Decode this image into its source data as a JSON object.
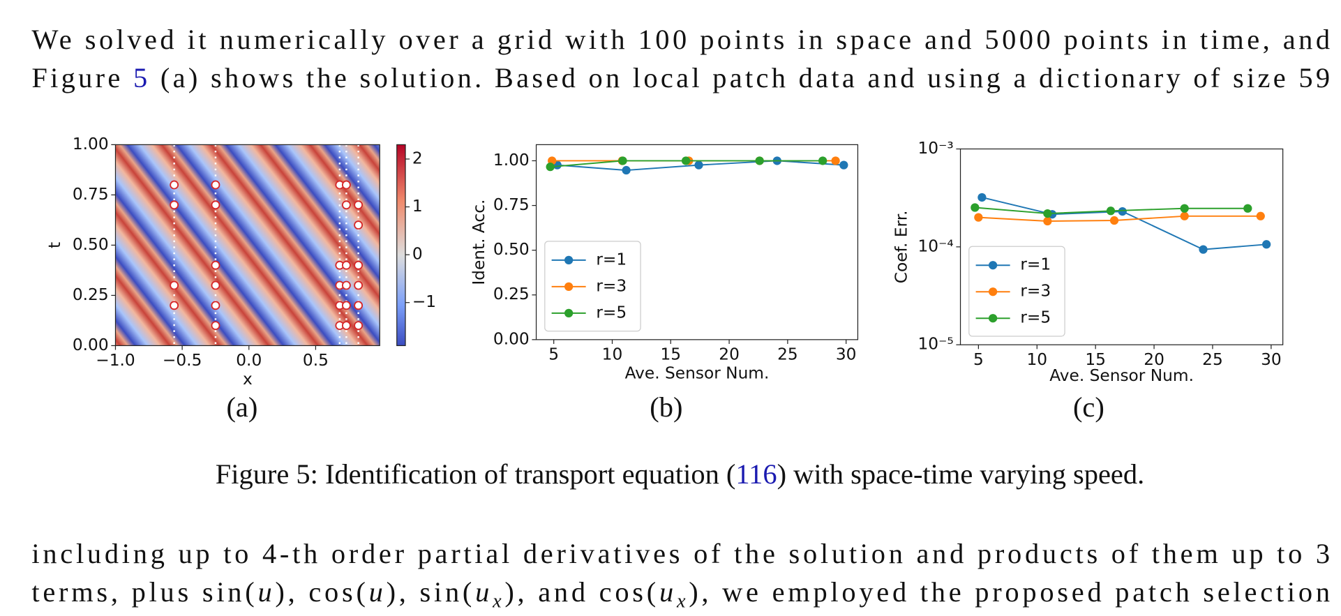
{
  "paragraph_1": {
    "line_1": "We solved it numerically over a grid with 100 points in space and 5000 points in time, and",
    "line_2_start": "Figure",
    "figure_ref": "5",
    "line_2_end": "(a) shows the solution. Based on local patch data and using a dictionary of size 59"
  },
  "caption": {
    "start": "Figure 5: Identification of transport equation (",
    "equation_ref": "116",
    "end": ") with space-time varying speed."
  },
  "paragraph_2": {
    "line_1": "including up to 4-th order partial derivatives of the solution and products of them up to 3",
    "line_2": [
      {
        "text": "terms, plus sin("
      },
      {
        "text": "u",
        "style": "italic"
      },
      {
        "text": "), cos("
      },
      {
        "text": "u",
        "style": "italic"
      },
      {
        "text": "), sin("
      },
      {
        "text": "u",
        "style": "italic"
      },
      {
        "text": "x",
        "style": "italic-sub"
      },
      {
        "text": "), and cos("
      },
      {
        "text": "u",
        "style": "italic"
      },
      {
        "text": "x",
        "style": "italic-sub"
      },
      {
        "text": "), we employed the proposed patch selection"
      }
    ]
  },
  "chart_data": [
    {
      "type": "heatmap",
      "panel_label": "(a)",
      "xlabel": "x",
      "ylabel": "t",
      "xlim": [
        -1,
        0.98
      ],
      "ylim": [
        0,
        1
      ],
      "xticks": [
        {
          "value": -1,
          "label": "−1.0"
        },
        {
          "value": -0.5,
          "label": "−0.5"
        },
        {
          "value": 0,
          "label": "0.0"
        },
        {
          "value": 0.5,
          "label": "0.5"
        }
      ],
      "yticks": [
        {
          "value": 0,
          "label": "0.00"
        },
        {
          "value": 0.25,
          "label": "0.25"
        },
        {
          "value": 0.5,
          "label": "0.50"
        },
        {
          "value": 0.75,
          "label": "0.75"
        },
        {
          "value": 1,
          "label": "1.00"
        }
      ],
      "colorbar": {
        "lim": [
          -1.9,
          2.3
        ],
        "ticks": [
          {
            "value": -1,
            "label": "−1"
          },
          0,
          1,
          2
        ]
      },
      "points": {
        "color": "#d62728",
        "x": [
          -0.56,
          -0.56,
          -0.56,
          -0.56,
          -0.25,
          -0.25,
          -0.25,
          -0.25,
          -0.25,
          -0.25,
          0.68,
          0.68,
          0.68,
          0.68,
          0.68,
          0.73,
          0.73,
          0.73,
          0.73,
          0.73,
          0.73,
          0.82,
          0.82,
          0.82,
          0.82,
          0.82,
          0.82
        ],
        "y": [
          0.8,
          0.7,
          0.3,
          0.2,
          0.8,
          0.7,
          0.4,
          0.3,
          0.2,
          0.1,
          0.8,
          0.4,
          0.3,
          0.2,
          0.1,
          0.8,
          0.7,
          0.4,
          0.3,
          0.2,
          0.1,
          0.7,
          0.6,
          0.4,
          0.3,
          0.2,
          0.1
        ]
      }
    },
    {
      "type": "line",
      "panel_label": "(b)",
      "xlabel": "Ave. Sensor Num.",
      "ylabel": "Ident. Acc.",
      "xlim": [
        3.5,
        31
      ],
      "ylim": [
        0,
        1.09
      ],
      "xticks": [
        5,
        10,
        15,
        20,
        25,
        30
      ],
      "yticks": [
        {
          "value": 0,
          "label": "0.00"
        },
        {
          "value": 0.25,
          "label": "0.25"
        },
        {
          "value": 0.5,
          "label": "0.50"
        },
        {
          "value": 0.75,
          "label": "0.75"
        },
        {
          "value": 1,
          "label": "1.00"
        }
      ],
      "legend": "lower left",
      "series": [
        {
          "name": "r=1",
          "color": "#1f77b4",
          "x": [
            5.3,
            11.2,
            17.4,
            24.1,
            29.8
          ],
          "values": [
            0.976,
            0.947,
            0.976,
            1.0,
            0.976
          ]
        },
        {
          "name": "r=3",
          "color": "#ff7f0e",
          "x": [
            4.85,
            10.85,
            16.55,
            22.6,
            29.1
          ],
          "values": [
            1.0,
            1.0,
            1.0,
            1.0,
            1.0
          ]
        },
        {
          "name": "r=5",
          "color": "#2ca02c",
          "x": [
            4.7,
            10.9,
            16.3,
            22.6,
            28.0
          ],
          "values": [
            0.966,
            1.0,
            1.0,
            1.0,
            1.0
          ]
        }
      ]
    },
    {
      "type": "line",
      "panel_label": "(c)",
      "xlabel": "Ave. Sensor Num.",
      "ylabel": "Coef. Err.",
      "log_y": true,
      "xlim": [
        3.46,
        31
      ],
      "ylim": [
        1e-05,
        0.001
      ],
      "xticks": [
        5,
        10,
        15,
        20,
        25,
        30
      ],
      "yticks": [
        {
          "value": 1e-05,
          "label": "10⁻⁵"
        },
        {
          "value": 0.0001,
          "label": "10⁻⁴"
        },
        {
          "value": 0.001,
          "label": "10⁻³"
        }
      ],
      "legend": "lower left",
      "series": [
        {
          "name": "r=1",
          "color": "#1f77b4",
          "x": [
            5.3,
            11.3,
            17.3,
            24.2,
            29.6
          ],
          "values": [
            0.00032,
            0.000215,
            0.00023,
            9.4e-05,
            0.000106
          ]
        },
        {
          "name": "r=3",
          "color": "#ff7f0e",
          "x": [
            5.0,
            10.9,
            16.6,
            22.6,
            29.1
          ],
          "values": [
            0.0002,
            0.000183,
            0.000186,
            0.000206,
            0.000206
          ]
        },
        {
          "name": "r=5",
          "color": "#2ca02c",
          "x": [
            4.7,
            10.9,
            16.3,
            22.6,
            28.0
          ],
          "values": [
            0.000252,
            0.000219,
            0.000233,
            0.000247,
            0.000247
          ]
        }
      ]
    }
  ]
}
